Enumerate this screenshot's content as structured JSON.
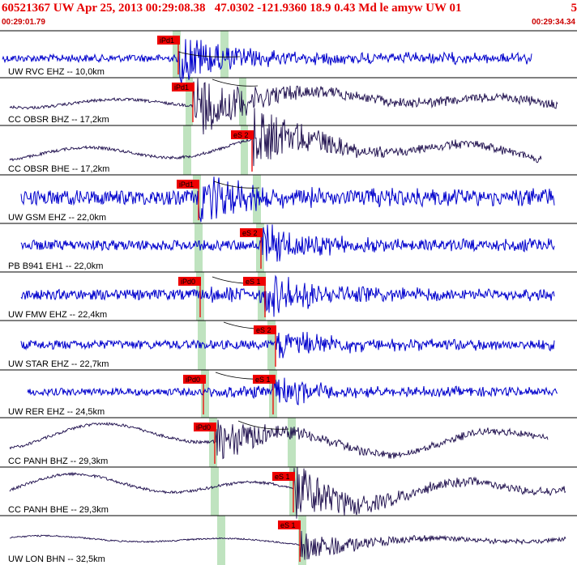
{
  "header": {
    "title": "60521367 UW Apr 25, 2013 00:29:08.38   47.0302 -121.9360 18.9 0.43 Md le amyw UW 01",
    "page_number": "5"
  },
  "time_axis": {
    "start": "00:29:01.79",
    "end": "00:29:34.34"
  },
  "colors": {
    "title": "#e60000",
    "trace_high_freq": "#0000cc",
    "trace_low_freq": "#1a0a4a",
    "pick_box": "#ee0000",
    "pick_line": "#ee0000",
    "window_band": "#bfe3bf",
    "separator": "#000000"
  },
  "traces": [
    {
      "label": "UW RVC EHZ -- 10,0km",
      "style": "hf",
      "picks": [
        {
          "text": "iPd1"
        }
      ]
    },
    {
      "label": "CC OBSR BHZ -- 17,2km",
      "style": "lf",
      "picks": [
        {
          "text": "iPd1"
        }
      ]
    },
    {
      "label": "CC OBSR BHE -- 17,2km",
      "style": "lf",
      "picks": [
        {
          "text": "eS 2"
        }
      ]
    },
    {
      "label": "UW GSM EHZ -- 22,0km",
      "style": "hf",
      "picks": [
        {
          "text": "iPd1"
        }
      ]
    },
    {
      "label": "PB B941 EH1 -- 22,0km",
      "style": "hf",
      "picks": [
        {
          "text": "eS 2"
        }
      ]
    },
    {
      "label": "UW FMW EHZ -- 22,4km",
      "style": "hf",
      "picks": [
        {
          "text": "iPd0"
        },
        {
          "text": "eS 1"
        }
      ]
    },
    {
      "label": "UW STAR EHZ -- 22,7km",
      "style": "hf",
      "picks": [
        {
          "text": "eS 2"
        }
      ]
    },
    {
      "label": "UW RER EHZ -- 24,5km",
      "style": "hf",
      "picks": [
        {
          "text": "iPd0"
        },
        {
          "text": "eS 1"
        }
      ]
    },
    {
      "label": "CC PANH BHZ -- 29,3km",
      "style": "lf",
      "picks": [
        {
          "text": "iPd0"
        }
      ]
    },
    {
      "label": "CC PANH BHE -- 29,3km",
      "style": "lf",
      "picks": [
        {
          "text": "eS 1"
        }
      ]
    },
    {
      "label": "UW LON BHN -- 32,5km",
      "style": "lf",
      "picks": [
        {
          "text": "eS 1"
        }
      ]
    }
  ]
}
